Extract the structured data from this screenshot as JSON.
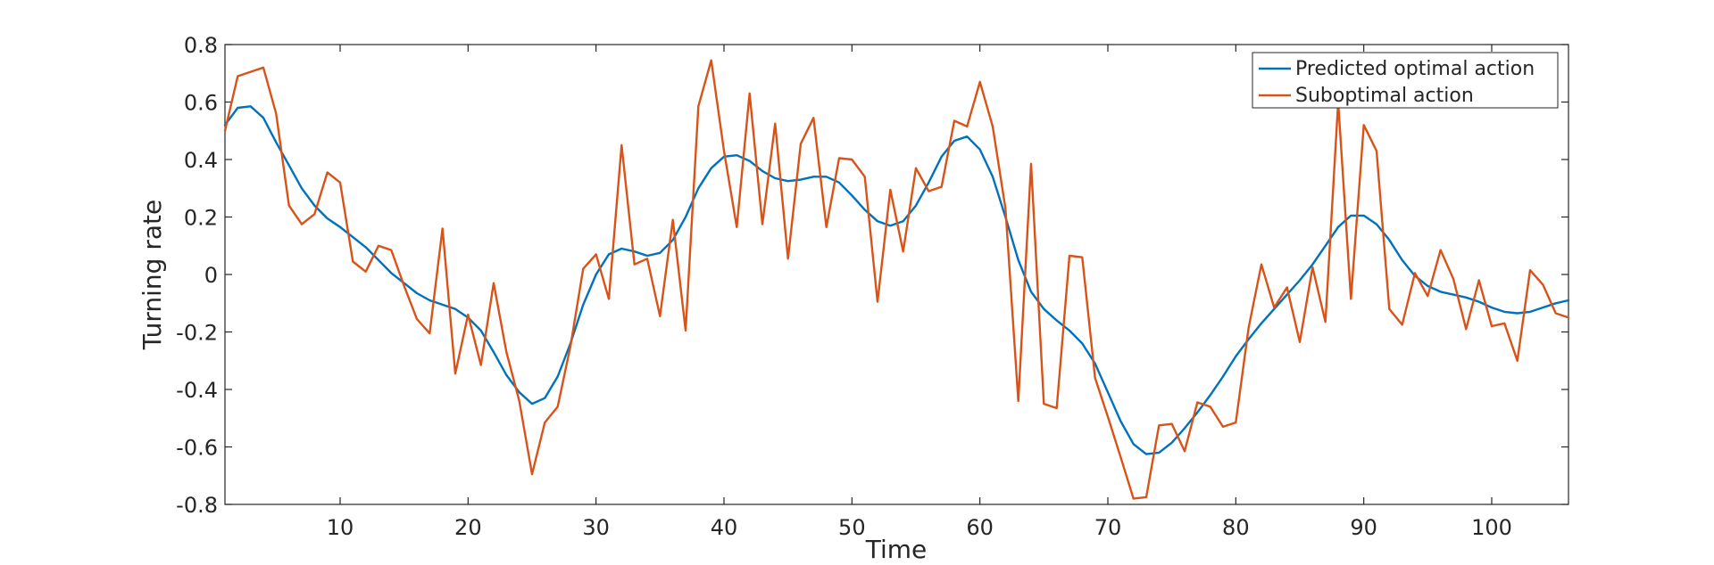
{
  "chart_data": {
    "type": "line",
    "xlabel": "Time",
    "ylabel": "Turning rate",
    "xlim": [
      1,
      106
    ],
    "ylim": [
      -0.8,
      0.8
    ],
    "xticks": [
      10,
      20,
      30,
      40,
      50,
      60,
      70,
      80,
      90,
      100
    ],
    "yticks": [
      -0.8,
      -0.6,
      -0.4,
      -0.2,
      0,
      0.2,
      0.4,
      0.6,
      0.8
    ],
    "ytick_labels": [
      "-0.8",
      "-0.6",
      "-0.4",
      "-0.2",
      "0",
      "0.2",
      "0.4",
      "0.6",
      "0.8"
    ],
    "grid": false,
    "legend_position": "top-right",
    "series": [
      {
        "name": "Predicted optimal action",
        "color": "#0072BD",
        "x": [
          1,
          2,
          3,
          4,
          5,
          6,
          7,
          8,
          9,
          10,
          11,
          12,
          13,
          14,
          15,
          16,
          17,
          18,
          19,
          20,
          21,
          22,
          23,
          24,
          25,
          26,
          27,
          28,
          29,
          30,
          31,
          32,
          33,
          34,
          35,
          36,
          37,
          38,
          39,
          40,
          41,
          42,
          43,
          44,
          45,
          46,
          47,
          48,
          49,
          50,
          51,
          52,
          53,
          54,
          55,
          56,
          57,
          58,
          59,
          60,
          61,
          62,
          63,
          64,
          65,
          66,
          67,
          68,
          69,
          70,
          71,
          72,
          73,
          74,
          75,
          76,
          77,
          78,
          79,
          80,
          81,
          82,
          83,
          84,
          85,
          86,
          87,
          88,
          89,
          90,
          91,
          92,
          93,
          94,
          95,
          96,
          97,
          98,
          99,
          100,
          101,
          102,
          103,
          104,
          105,
          106
        ],
        "y": [
          0.52,
          0.58,
          0.585,
          0.545,
          0.46,
          0.38,
          0.3,
          0.24,
          0.195,
          0.165,
          0.13,
          0.095,
          0.05,
          0.005,
          -0.03,
          -0.065,
          -0.09,
          -0.105,
          -0.12,
          -0.15,
          -0.195,
          -0.27,
          -0.35,
          -0.41,
          -0.45,
          -0.43,
          -0.355,
          -0.24,
          -0.105,
          0.0,
          0.07,
          0.09,
          0.08,
          0.065,
          0.075,
          0.12,
          0.2,
          0.3,
          0.37,
          0.41,
          0.415,
          0.395,
          0.36,
          0.335,
          0.325,
          0.33,
          0.34,
          0.34,
          0.32,
          0.275,
          0.225,
          0.185,
          0.17,
          0.185,
          0.24,
          0.32,
          0.41,
          0.465,
          0.48,
          0.435,
          0.34,
          0.2,
          0.05,
          -0.06,
          -0.12,
          -0.16,
          -0.195,
          -0.24,
          -0.31,
          -0.41,
          -0.51,
          -0.59,
          -0.625,
          -0.62,
          -0.585,
          -0.535,
          -0.48,
          -0.42,
          -0.355,
          -0.285,
          -0.225,
          -0.17,
          -0.12,
          -0.07,
          -0.02,
          0.035,
          0.1,
          0.165,
          0.205,
          0.205,
          0.175,
          0.12,
          0.05,
          -0.005,
          -0.04,
          -0.06,
          -0.07,
          -0.08,
          -0.095,
          -0.115,
          -0.13,
          -0.135,
          -0.13,
          -0.115,
          -0.1,
          -0.09
        ]
      },
      {
        "name": "Suboptimal action",
        "color": "#D95319",
        "x": [
          1,
          2,
          3,
          4,
          5,
          6,
          7,
          8,
          9,
          10,
          11,
          12,
          13,
          14,
          15,
          16,
          17,
          18,
          19,
          20,
          21,
          22,
          23,
          24,
          25,
          26,
          27,
          28,
          29,
          30,
          31,
          32,
          33,
          34,
          35,
          36,
          37,
          38,
          39,
          40,
          41,
          42,
          43,
          44,
          45,
          46,
          47,
          48,
          49,
          50,
          51,
          52,
          53,
          54,
          55,
          56,
          57,
          58,
          59,
          60,
          61,
          62,
          63,
          64,
          65,
          66,
          67,
          68,
          69,
          70,
          71,
          72,
          73,
          74,
          75,
          76,
          77,
          78,
          79,
          80,
          81,
          82,
          83,
          84,
          85,
          86,
          87,
          88,
          89,
          90,
          91,
          92,
          93,
          94,
          95,
          96,
          97,
          98,
          99,
          100,
          101,
          102,
          103,
          104,
          105,
          106
        ],
        "y": [
          0.5,
          0.69,
          0.705,
          0.72,
          0.56,
          0.24,
          0.175,
          0.21,
          0.355,
          0.32,
          0.045,
          0.01,
          0.1,
          0.085,
          -0.04,
          -0.155,
          -0.205,
          0.16,
          -0.345,
          -0.14,
          -0.315,
          -0.03,
          -0.27,
          -0.44,
          -0.695,
          -0.515,
          -0.46,
          -0.25,
          0.02,
          0.07,
          -0.085,
          0.45,
          0.035,
          0.055,
          -0.145,
          0.19,
          -0.195,
          0.585,
          0.745,
          0.43,
          0.165,
          0.63,
          0.175,
          0.525,
          0.055,
          0.455,
          0.545,
          0.165,
          0.405,
          0.4,
          0.34,
          -0.095,
          0.295,
          0.08,
          0.37,
          0.29,
          0.305,
          0.535,
          0.515,
          0.67,
          0.515,
          0.23,
          -0.44,
          0.385,
          -0.45,
          -0.465,
          0.065,
          0.06,
          -0.36,
          -0.495,
          -0.635,
          -0.78,
          -0.775,
          -0.525,
          -0.52,
          -0.615,
          -0.445,
          -0.46,
          -0.53,
          -0.515,
          -0.185,
          0.035,
          -0.115,
          -0.045,
          -0.235,
          0.025,
          -0.165,
          0.6,
          -0.085,
          0.52,
          0.43,
          -0.12,
          -0.175,
          0.005,
          -0.075,
          0.085,
          -0.015,
          -0.19,
          -0.02,
          -0.18,
          -0.17,
          -0.3,
          0.015,
          -0.035,
          -0.135,
          -0.15
        ]
      }
    ]
  }
}
